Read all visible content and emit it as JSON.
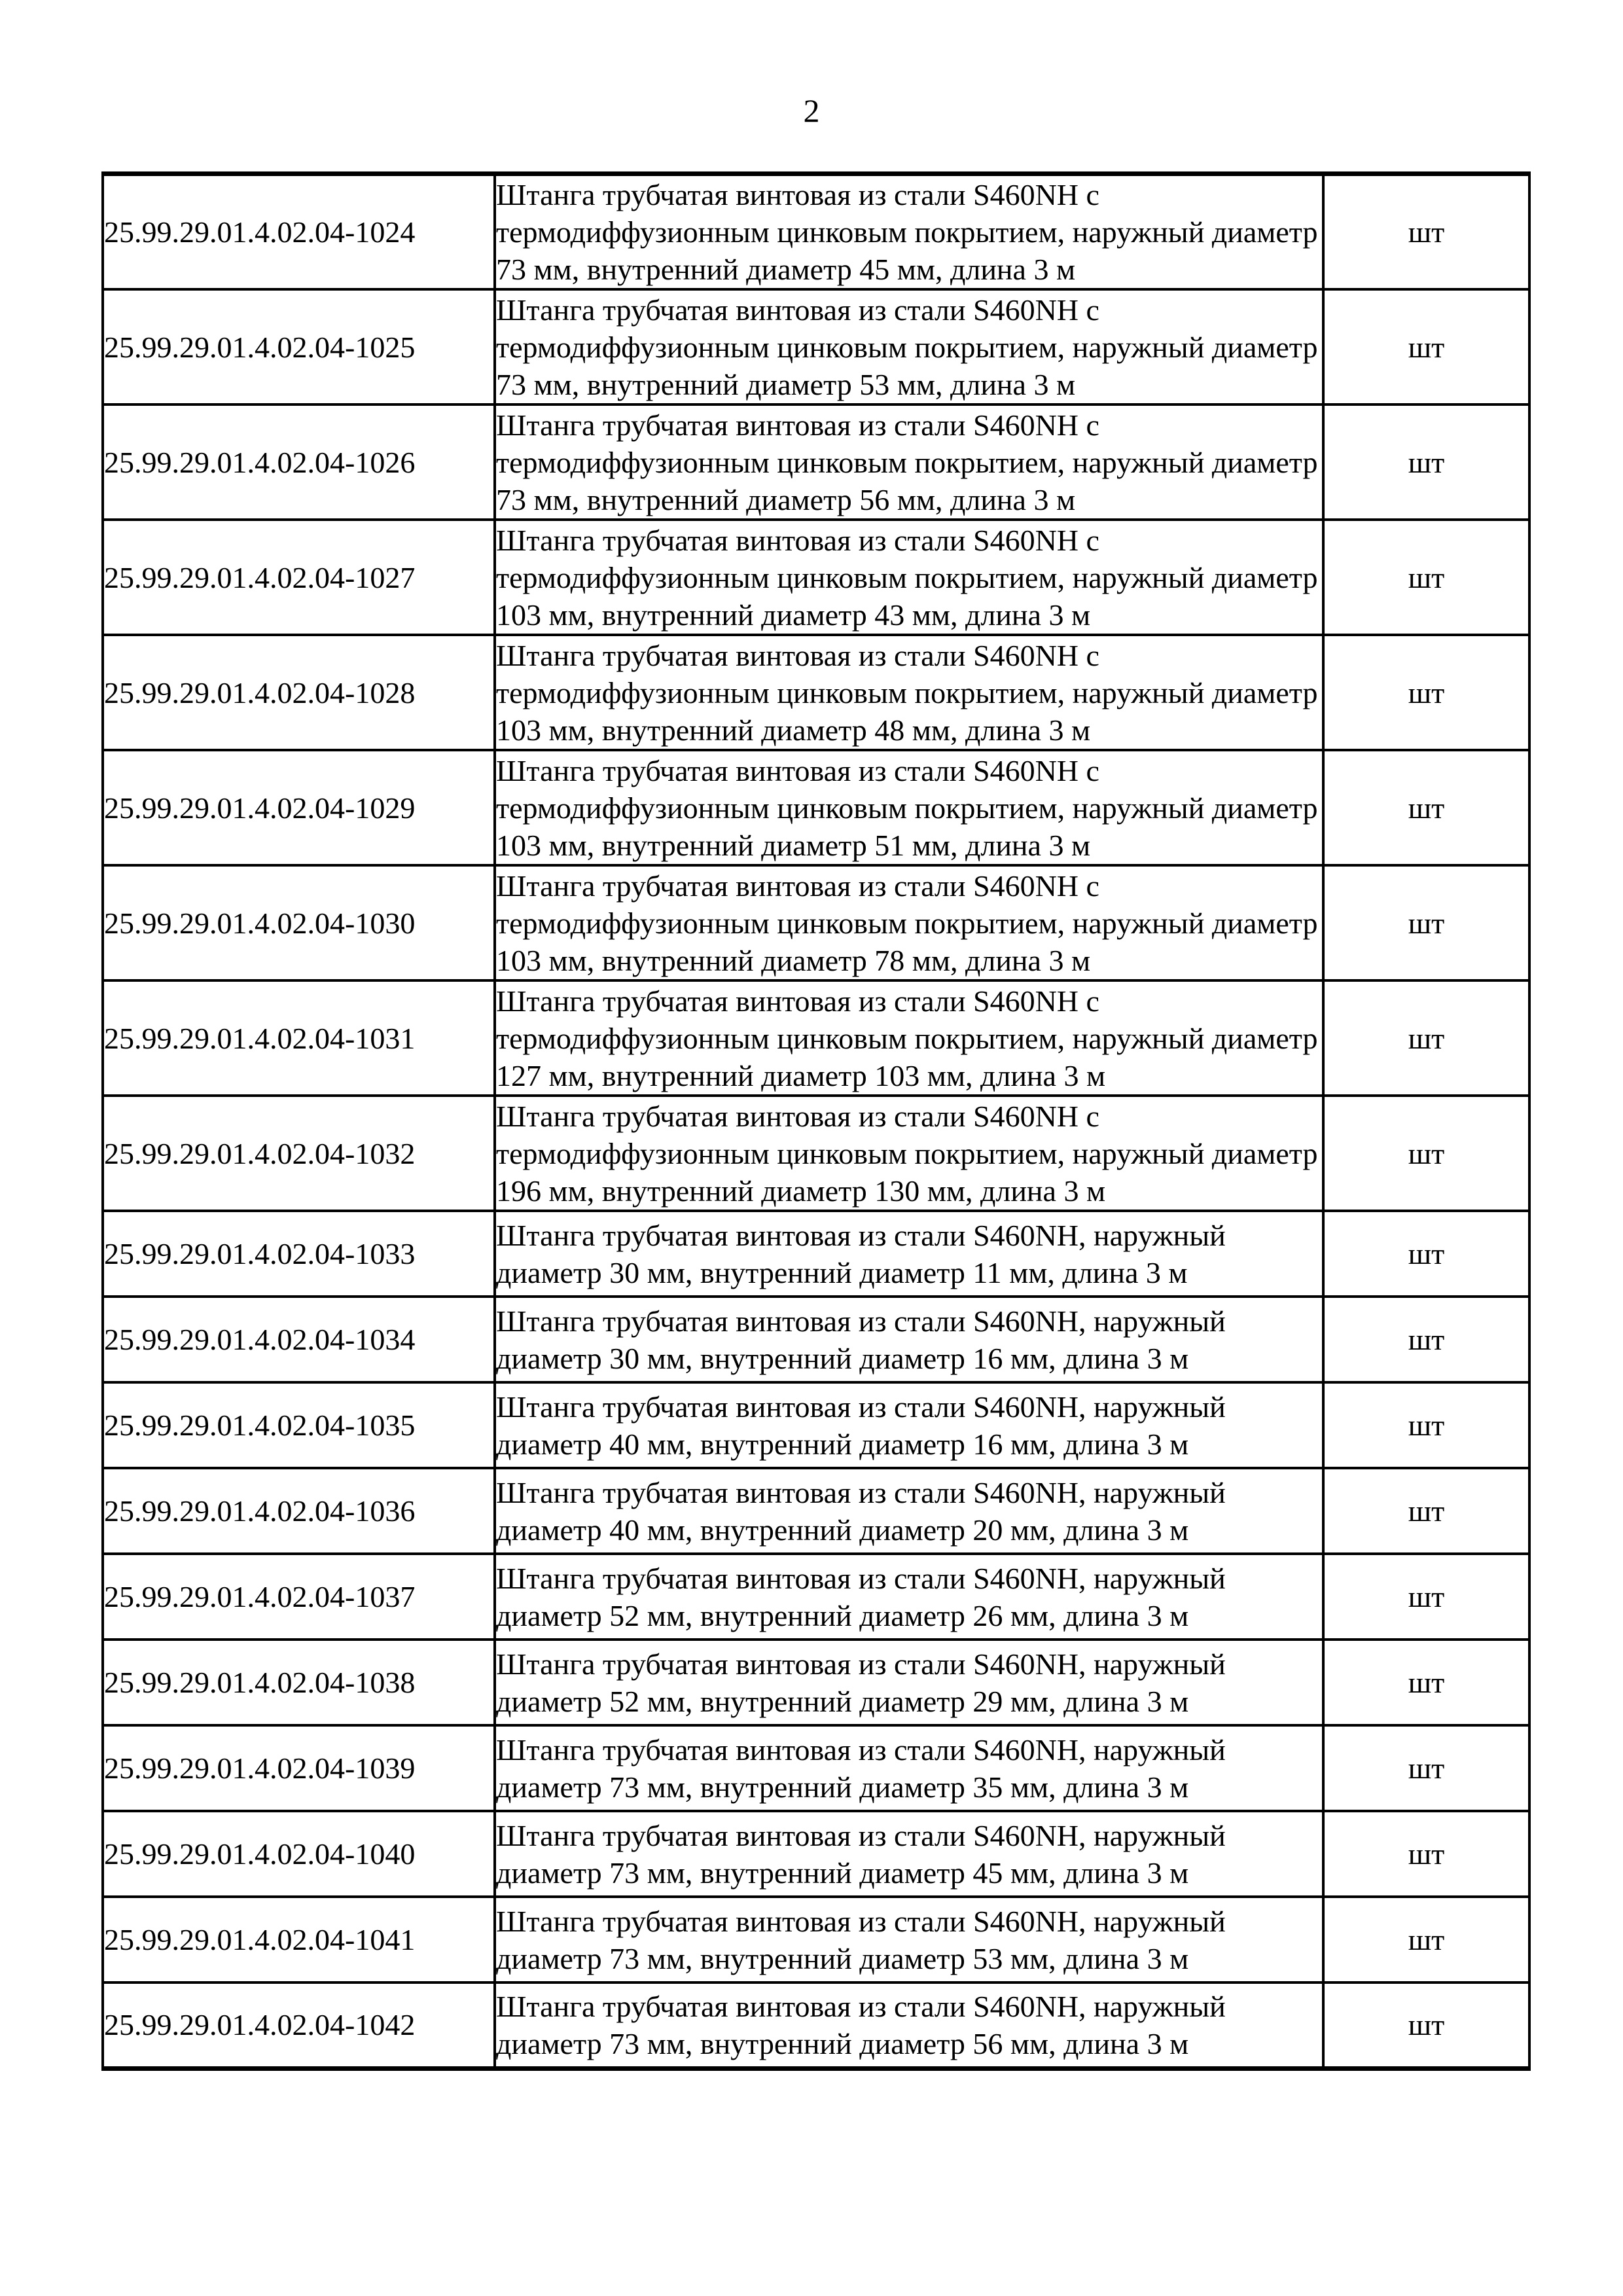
{
  "page": {
    "number": "2"
  },
  "table": {
    "rows": [
      {
        "code": "25.99.29.01.4.02.04-1024",
        "description": "Штанга трубчатая винтовая из стали S460NH с термодиффузионным цинковым покрытием, наружный диаметр 73 мм, внутренний диаметр 45 мм, длина 3 м",
        "unit": "шт"
      },
      {
        "code": "25.99.29.01.4.02.04-1025",
        "description": "Штанга трубчатая винтовая из стали S460NH с термодиффузионным цинковым покрытием, наружный диаметр 73 мм, внутренний диаметр 53 мм, длина 3 м",
        "unit": "шт"
      },
      {
        "code": "25.99.29.01.4.02.04-1026",
        "description": "Штанга трубчатая винтовая из стали S460NH с термодиффузионным цинковым покрытием, наружный диаметр 73 мм, внутренний диаметр 56 мм, длина 3 м",
        "unit": "шт"
      },
      {
        "code": "25.99.29.01.4.02.04-1027",
        "description": "Штанга трубчатая винтовая из стали S460NH с термодиффузионным цинковым покрытием, наружный диаметр 103 мм, внутренний диаметр 43 мм, длина 3 м",
        "unit": "шт"
      },
      {
        "code": "25.99.29.01.4.02.04-1028",
        "description": "Штанга трубчатая винтовая из стали S460NH с термодиффузионным цинковым покрытием, наружный диаметр 103 мм, внутренний диаметр 48 мм, длина 3 м",
        "unit": "шт"
      },
      {
        "code": "25.99.29.01.4.02.04-1029",
        "description": "Штанга трубчатая винтовая из стали S460NH с термодиффузионным цинковым покрытием, наружный диаметр 103 мм, внутренний диаметр 51 мм, длина 3 м",
        "unit": "шт"
      },
      {
        "code": "25.99.29.01.4.02.04-1030",
        "description": "Штанга трубчатая винтовая из стали S460NH с термодиффузионным цинковым покрытием, наружный диаметр 103 мм, внутренний диаметр 78 мм, длина 3 м",
        "unit": "шт"
      },
      {
        "code": "25.99.29.01.4.02.04-1031",
        "description": "Штанга трубчатая винтовая из стали S460NH с термодиффузионным цинковым покрытием, наружный диаметр 127 мм, внутренний диаметр 103 мм, длина 3 м",
        "unit": "шт"
      },
      {
        "code": "25.99.29.01.4.02.04-1032",
        "description": "Штанга трубчатая винтовая из стали S460NH с термодиффузионным цинковым покрытием, наружный диаметр 196 мм, внутренний диаметр 130 мм, длина 3 м",
        "unit": "шт"
      },
      {
        "code": "25.99.29.01.4.02.04-1033",
        "description": "Штанга трубчатая винтовая из стали S460NH, наружный диаметр 30 мм, внутренний диаметр 11 мм, длина 3 м",
        "unit": "шт"
      },
      {
        "code": "25.99.29.01.4.02.04-1034",
        "description": "Штанга трубчатая винтовая из стали S460NH, наружный диаметр 30 мм, внутренний диаметр 16 мм, длина 3 м",
        "unit": "шт"
      },
      {
        "code": "25.99.29.01.4.02.04-1035",
        "description": "Штанга трубчатая винтовая из стали S460NH, наружный диаметр 40 мм, внутренний диаметр 16 мм, длина 3 м",
        "unit": "шт"
      },
      {
        "code": "25.99.29.01.4.02.04-1036",
        "description": "Штанга трубчатая винтовая из стали S460NH, наружный диаметр 40 мм, внутренний диаметр 20 мм, длина 3 м",
        "unit": "шт"
      },
      {
        "code": "25.99.29.01.4.02.04-1037",
        "description": "Штанга трубчатая винтовая из стали S460NH, наружный диаметр 52 мм, внутренний диаметр 26 мм, длина 3 м",
        "unit": "шт"
      },
      {
        "code": "25.99.29.01.4.02.04-1038",
        "description": "Штанга трубчатая винтовая из стали S460NH, наружный диаметр 52 мм, внутренний диаметр 29 мм, длина 3 м",
        "unit": "шт"
      },
      {
        "code": "25.99.29.01.4.02.04-1039",
        "description": "Штанга трубчатая винтовая из стали S460NH, наружный диаметр 73 мм, внутренний диаметр 35 мм, длина 3 м",
        "unit": "шт"
      },
      {
        "code": "25.99.29.01.4.02.04-1040",
        "description": "Штанга трубчатая винтовая из стали S460NH, наружный диаметр 73 мм, внутренний диаметр 45 мм, длина 3 м",
        "unit": "шт"
      },
      {
        "code": "25.99.29.01.4.02.04-1041",
        "description": "Штанга трубчатая винтовая из стали S460NH, наружный диаметр 73 мм, внутренний диаметр 53 мм, длина 3 м",
        "unit": "шт"
      },
      {
        "code": "25.99.29.01.4.02.04-1042",
        "description": "Штанга трубчатая винтовая из стали S460NH, наружный диаметр 73 мм, внутренний диаметр 56 мм, длина 3 м",
        "unit": "шт"
      }
    ]
  }
}
